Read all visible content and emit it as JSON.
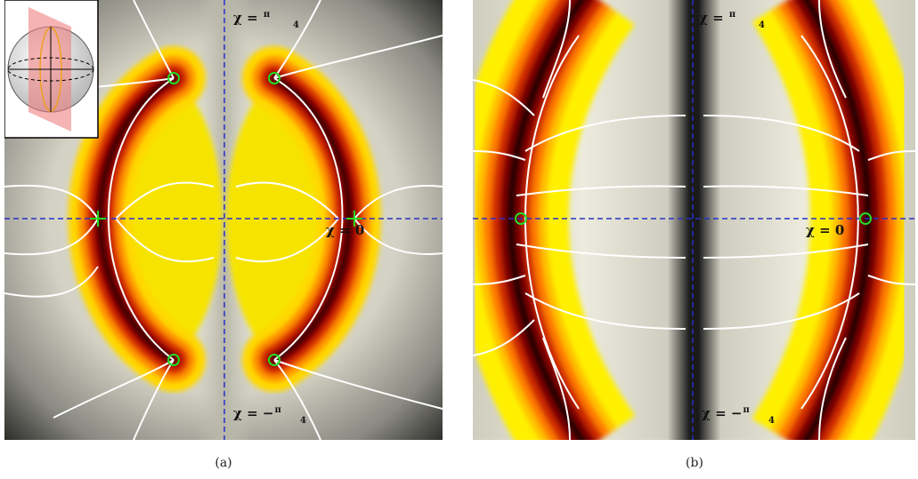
{
  "panels": [
    {
      "caption": "(a)",
      "labels": [
        {
          "symbol": "χ = ",
          "num": "π",
          "den": "4"
        },
        {
          "symbol": "χ = 0"
        },
        {
          "symbol": "χ = −",
          "num": "π",
          "den": "4"
        }
      ]
    },
    {
      "caption": "(b)",
      "labels": [
        {
          "symbol": "χ = ",
          "num": "π",
          "den": "4"
        },
        {
          "symbol": "χ = 0"
        },
        {
          "symbol": "χ = −",
          "num": "π",
          "den": "4"
        }
      ]
    }
  ]
}
